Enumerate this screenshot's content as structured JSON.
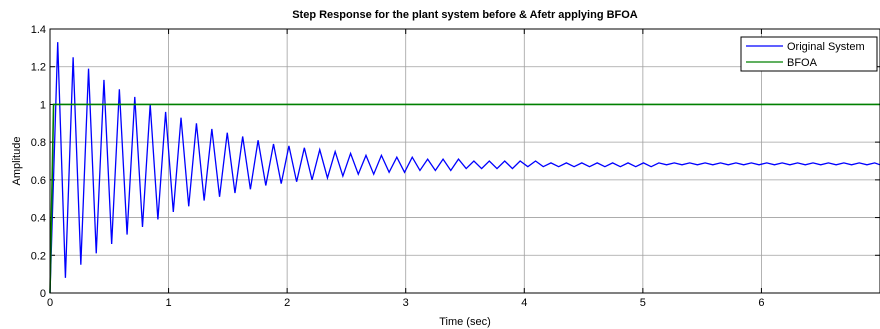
{
  "chart_data": {
    "type": "line",
    "title": "Step Response for the plant system before & Afetr applying BFOA",
    "xlabel": "Time (sec)",
    "ylabel": "Amplitude",
    "xlim": [
      0,
      7
    ],
    "ylim": [
      0,
      1.4
    ],
    "xticks": [
      0,
      1,
      2,
      3,
      4,
      5,
      6
    ],
    "yticks": [
      0,
      0.2,
      0.4,
      0.6,
      0.8,
      1,
      1.2,
      1.4
    ],
    "grid": true,
    "legend_position": "top-right",
    "series": [
      {
        "name": "Original System",
        "color": "#0000ff",
        "x": [
          0,
          0.065,
          0.13,
          0.195,
          0.26,
          0.325,
          0.39,
          0.455,
          0.52,
          0.585,
          0.65,
          0.715,
          0.78,
          0.845,
          0.91,
          0.975,
          1.04,
          1.105,
          1.17,
          1.235,
          1.3,
          1.365,
          1.43,
          1.495,
          1.56,
          1.625,
          1.69,
          1.755,
          1.82,
          1.885,
          1.95,
          2.015,
          2.08,
          2.145,
          2.21,
          2.275,
          2.34,
          2.405,
          2.47,
          2.535,
          2.6,
          2.665,
          2.73,
          2.795,
          2.86,
          2.925,
          2.99,
          3.055,
          3.12,
          3.185,
          3.25,
          3.315,
          3.38,
          3.445,
          3.51,
          3.575,
          3.64,
          3.705,
          3.77,
          3.835,
          3.9,
          3.965,
          4.03,
          4.095,
          4.16,
          4.225,
          4.29,
          4.355,
          4.42,
          4.485,
          4.55,
          4.615,
          4.68,
          4.745,
          4.81,
          4.875,
          4.94,
          5.005,
          5.07,
          5.135,
          5.2,
          5.265,
          5.33,
          5.395,
          5.46,
          5.525,
          5.59,
          5.655,
          5.72,
          5.785,
          5.85,
          5.915,
          5.98,
          6.045,
          6.11,
          6.175,
          6.24,
          6.305,
          6.37,
          6.435,
          6.5,
          6.565,
          6.63,
          6.695,
          6.76,
          6.825,
          6.89,
          6.955,
          7.0
        ],
        "y": [
          0,
          1.33,
          0.08,
          1.25,
          0.15,
          1.19,
          0.21,
          1.13,
          0.26,
          1.08,
          0.31,
          1.04,
          0.35,
          1.0,
          0.39,
          0.96,
          0.43,
          0.93,
          0.46,
          0.9,
          0.49,
          0.87,
          0.51,
          0.85,
          0.53,
          0.83,
          0.55,
          0.81,
          0.57,
          0.79,
          0.58,
          0.78,
          0.59,
          0.77,
          0.6,
          0.76,
          0.61,
          0.75,
          0.62,
          0.74,
          0.63,
          0.73,
          0.63,
          0.73,
          0.64,
          0.72,
          0.64,
          0.72,
          0.65,
          0.71,
          0.65,
          0.71,
          0.65,
          0.71,
          0.66,
          0.7,
          0.66,
          0.7,
          0.66,
          0.7,
          0.66,
          0.7,
          0.67,
          0.7,
          0.67,
          0.69,
          0.67,
          0.69,
          0.67,
          0.69,
          0.67,
          0.69,
          0.67,
          0.69,
          0.67,
          0.69,
          0.67,
          0.69,
          0.67,
          0.69,
          0.68,
          0.69,
          0.68,
          0.69,
          0.68,
          0.69,
          0.68,
          0.69,
          0.68,
          0.69,
          0.68,
          0.69,
          0.68,
          0.69,
          0.68,
          0.69,
          0.68,
          0.69,
          0.68,
          0.69,
          0.68,
          0.69,
          0.68,
          0.69,
          0.68,
          0.69,
          0.68,
          0.69,
          0.68
        ]
      },
      {
        "name": "BFOA",
        "color": "#008000",
        "x": [
          0,
          0.03,
          7.0
        ],
        "y": [
          0,
          1.0,
          1.0
        ]
      }
    ]
  }
}
